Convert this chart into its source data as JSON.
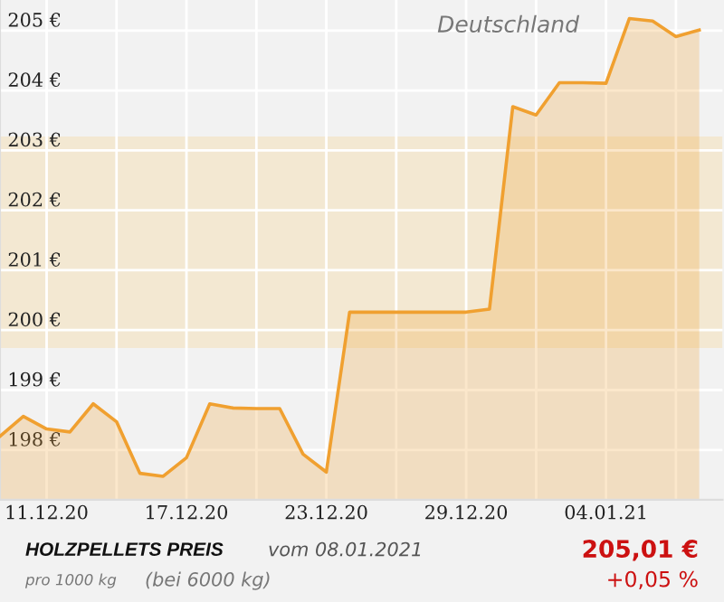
{
  "chart_data": {
    "type": "area",
    "x": [
      "2020-12-09",
      "2020-12-10",
      "2020-12-11",
      "2020-12-12",
      "2020-12-13",
      "2020-12-14",
      "2020-12-15",
      "2020-12-16",
      "2020-12-17",
      "2020-12-18",
      "2020-12-19",
      "2020-12-20",
      "2020-12-21",
      "2020-12-22",
      "2020-12-23",
      "2020-12-24",
      "2020-12-25",
      "2020-12-26",
      "2020-12-27",
      "2020-12-28",
      "2020-12-29",
      "2020-12-30",
      "2020-12-31",
      "2021-01-01",
      "2021-01-02",
      "2021-01-03",
      "2021-01-04",
      "2021-01-05",
      "2021-01-06",
      "2021-01-07",
      "2021-01-08"
    ],
    "series": [
      {
        "color": "#f0a030",
        "values": [
          198.23,
          198.56,
          198.35,
          198.3,
          198.77,
          198.47,
          197.61,
          197.56,
          197.87,
          198.77,
          198.7,
          198.69,
          198.69,
          197.93,
          197.63,
          200.3,
          200.3,
          200.3,
          200.3,
          200.3,
          200.3,
          200.35,
          203.73,
          203.59,
          204.13,
          204.13,
          204.12,
          205.2,
          205.16,
          204.9,
          205.01
        ]
      }
    ],
    "xlim": [
      "2020-12-09",
      "2021-01-09"
    ],
    "xticks": [
      {
        "value": "2020-12-11",
        "label": "11.12.20"
      },
      {
        "value": "2020-12-14",
        "label": null
      },
      {
        "value": "2020-12-17",
        "label": "17.12.20"
      },
      {
        "value": "2020-12-20",
        "label": null
      },
      {
        "value": "2020-12-23",
        "label": "23.12.20"
      },
      {
        "value": "2020-12-26",
        "label": null
      },
      {
        "value": "2020-12-29",
        "label": "29.12.20"
      },
      {
        "value": "2021-01-01",
        "label": null
      },
      {
        "value": "2021-01-04",
        "label": "04.01.21"
      },
      {
        "value": "2021-01-07",
        "label": null
      }
    ],
    "ylim": [
      197.17,
      205.51
    ],
    "yticks": [
      {
        "value": 198,
        "label": "198 €"
      },
      {
        "value": 199,
        "label": "199 €"
      },
      {
        "value": 200,
        "label": "200 €"
      },
      {
        "value": 201,
        "label": "201 €"
      },
      {
        "value": 202,
        "label": "202 €"
      },
      {
        "value": 203,
        "label": "203 €"
      },
      {
        "value": 204,
        "label": "204 €"
      },
      {
        "value": 205,
        "label": "205 €"
      }
    ],
    "bands": [
      {
        "axis": "y",
        "from": 199.7,
        "to": 203.23,
        "color": "#f3e8d2"
      }
    ],
    "grid": true,
    "annotations": [
      "Deutschland",
      "HOLZPELLETS PREIS",
      "vom 08.01.2021",
      "pro 1000 kg",
      "(bei 6000 kg)",
      "205,01 €",
      "+0,05 %"
    ]
  }
}
